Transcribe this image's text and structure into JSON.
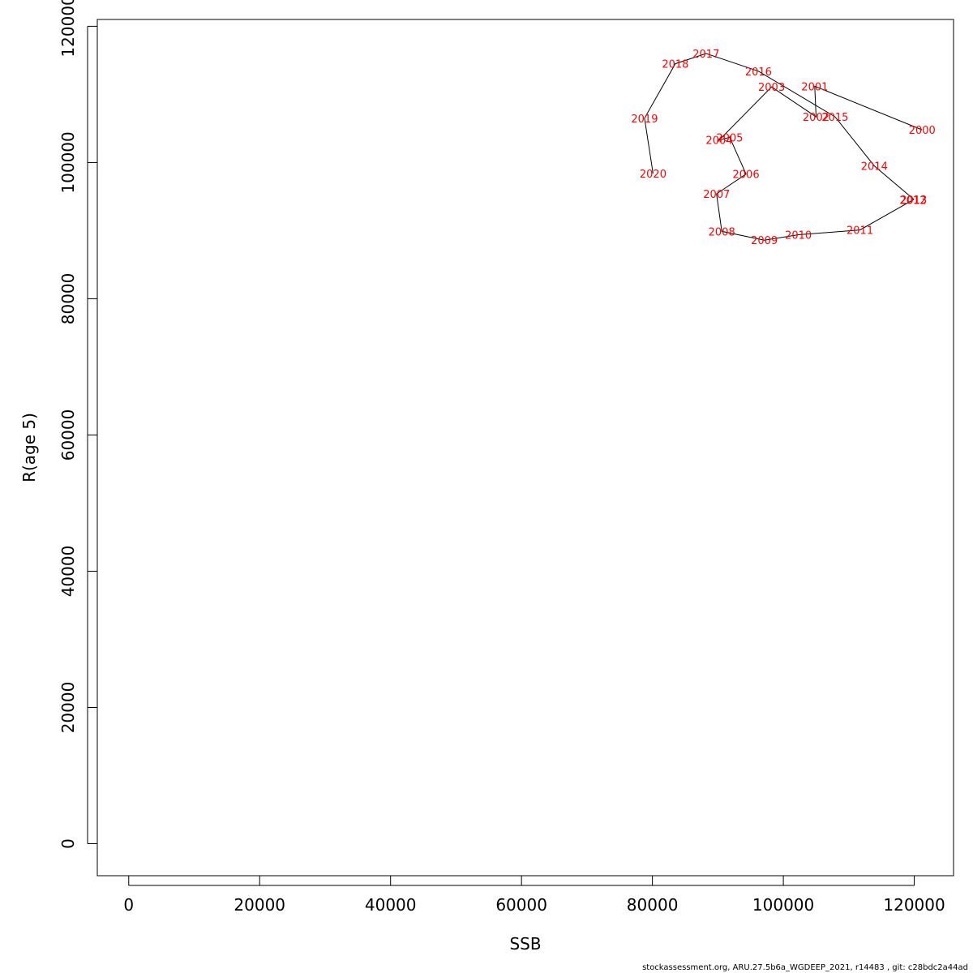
{
  "chart_data": {
    "type": "line",
    "title": "",
    "xlabel": "SSB",
    "ylabel": "R(age 5)",
    "xlim": [
      -4800,
      126000
    ],
    "ylim": [
      -4700,
      121000
    ],
    "x_ticks": [
      0,
      20000,
      40000,
      60000,
      80000,
      100000,
      120000
    ],
    "y_ticks": [
      0,
      20000,
      40000,
      60000,
      80000,
      100000,
      120000
    ],
    "grid": false,
    "legend": "none",
    "line_color": "#000000",
    "label_color": "#ff0000",
    "points": [
      {
        "label": "2000",
        "x": 121200,
        "y": 104800
      },
      {
        "label": "2001",
        "x": 104800,
        "y": 111200
      },
      {
        "label": "2002",
        "x": 105000,
        "y": 106700
      },
      {
        "label": "2003",
        "x": 98200,
        "y": 111100
      },
      {
        "label": "2004",
        "x": 90200,
        "y": 103300
      },
      {
        "label": "2005",
        "x": 91800,
        "y": 103700
      },
      {
        "label": "2006",
        "x": 94300,
        "y": 98300
      },
      {
        "label": "2007",
        "x": 89800,
        "y": 95400
      },
      {
        "label": "2008",
        "x": 90600,
        "y": 89900
      },
      {
        "label": "2009",
        "x": 97100,
        "y": 88600
      },
      {
        "label": "2010",
        "x": 102300,
        "y": 89400
      },
      {
        "label": "2011",
        "x": 111700,
        "y": 90100
      },
      {
        "label": "2012",
        "x": 119800,
        "y": 94500
      },
      {
        "label": "2013",
        "x": 119900,
        "y": 94600
      },
      {
        "label": "2014",
        "x": 113900,
        "y": 99500
      },
      {
        "label": "2015",
        "x": 107900,
        "y": 106700
      },
      {
        "label": "2016",
        "x": 96200,
        "y": 113400
      },
      {
        "label": "2017",
        "x": 88200,
        "y": 116000
      },
      {
        "label": "2018",
        "x": 83500,
        "y": 114500
      },
      {
        "label": "2019",
        "x": 78800,
        "y": 106500
      },
      {
        "label": "2020",
        "x": 80100,
        "y": 98400
      }
    ]
  },
  "footer": {
    "text": "stockassessment.org, ARU.27.5b6a_WGDEEP_2021, r14483 , git: c28bdc2a44ad"
  }
}
